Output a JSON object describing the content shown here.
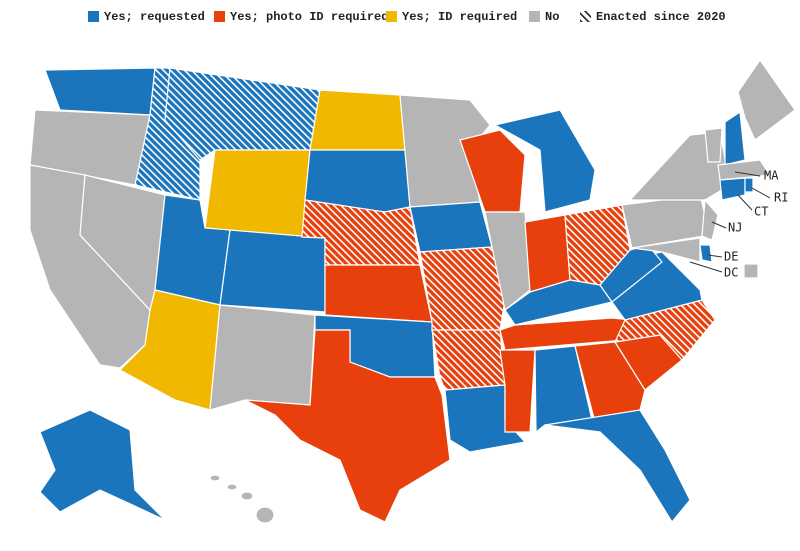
{
  "legend": [
    {
      "label": "Yes; requested",
      "color": "#1b75bc"
    },
    {
      "label": "Yes; photo ID required",
      "color": "#e8400c"
    },
    {
      "label": "Yes; ID required",
      "color": "#f0b800"
    },
    {
      "label": "No",
      "color": "#b5b5b5"
    },
    {
      "label": "Enacted since 2020",
      "color": "#222222"
    }
  ],
  "labels": [
    "MA",
    "RI",
    "CT",
    "NJ",
    "DE",
    "DC"
  ]
}
